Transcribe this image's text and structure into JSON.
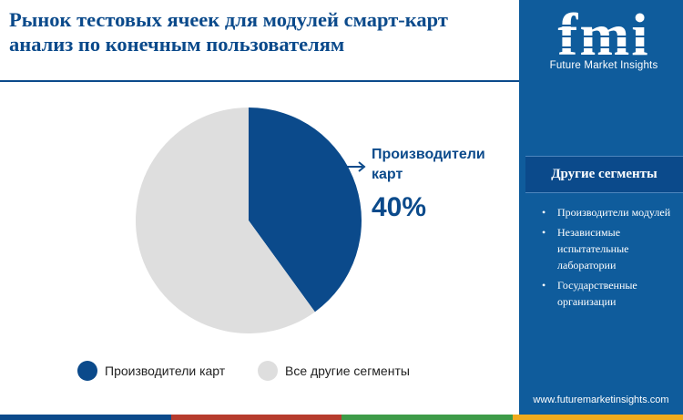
{
  "title": "Рынок тестовых ячеек для модулей смарт-карт анализ по конечным пользователям",
  "brand": {
    "logo_text": "fmi",
    "tagline": "Future Market Insights",
    "website": "www.futuremarketinsights.com",
    "primary_color": "#0b4a8b",
    "sidebar_color": "#0f5c9c"
  },
  "sidebar": {
    "other_segments_title": "Другие сегменты",
    "bullet": "•",
    "items": [
      "Производители модулей",
      "Независимые испытательные лаборатории",
      "Государственные организации"
    ]
  },
  "callout": {
    "label": "Производители карт",
    "value": "40%"
  },
  "chart_data": {
    "type": "pie",
    "title": "",
    "slices": [
      {
        "name": "Производители карт",
        "value": 40,
        "color": "#0b4a8b"
      },
      {
        "name": "Все другие сегменты",
        "value": 60,
        "color": "#dedede"
      }
    ],
    "start_angle_deg": 0,
    "direction": "clockwise",
    "legend_position": "bottom"
  },
  "legend": [
    {
      "label": "Производители карт",
      "color": "#0b4a8b"
    },
    {
      "label": "Все другие сегменты",
      "color": "#dedede"
    }
  ],
  "bottom_bar_colors": [
    "#0b4a8b",
    "#b63c2d",
    "#3d9b48",
    "#f0ab1d"
  ]
}
